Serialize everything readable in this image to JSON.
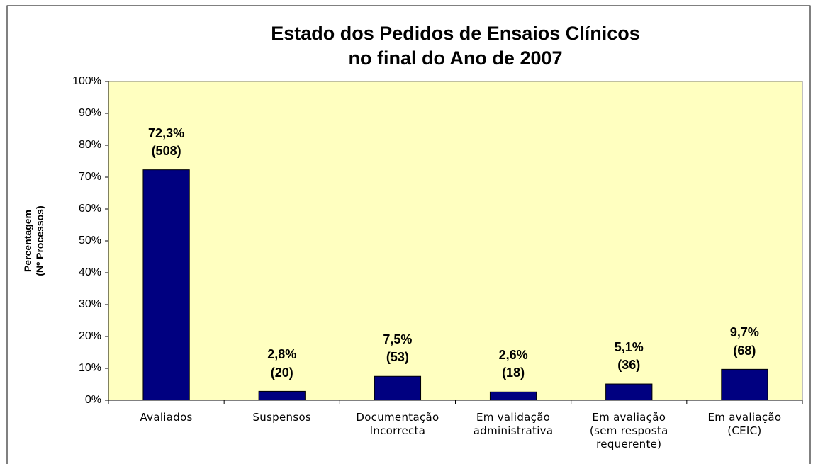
{
  "chart_data": {
    "type": "bar",
    "title": "Estado dos Pedidos de Ensaios Clínicos\nno final do Ano de 2007",
    "y_label": "Percentagem\n(Nº Processos)",
    "categories": [
      "Avaliados",
      "Suspensos",
      "Documentação\nIncorrecta",
      "Em validação\nadministrativa",
      "Em avaliação\n(sem resposta\nrequerente)",
      "Em avaliação\n(CEIC)"
    ],
    "values": [
      72.3,
      2.8,
      7.5,
      2.6,
      5.1,
      9.7
    ],
    "value_labels": [
      "72,3%\n(508)",
      "2,8%\n(20)",
      "7,5%\n(53)",
      "2,6%\n(18)",
      "5,1%\n(36)",
      "9,7%\n(68)"
    ],
    "color": "#000080",
    "ylim": [
      0,
      100
    ],
    "yticks": [
      {
        "value": 0,
        "label": "0%"
      },
      {
        "value": 10,
        "label": "10%"
      },
      {
        "value": 20,
        "label": "20%"
      },
      {
        "value": 30,
        "label": "30%"
      },
      {
        "value": 40,
        "label": "40%"
      },
      {
        "value": 50,
        "label": "50%"
      },
      {
        "value": 60,
        "label": "60%"
      },
      {
        "value": 70,
        "label": "70%"
      },
      {
        "value": 80,
        "label": "80%"
      },
      {
        "value": 90,
        "label": "90%"
      },
      {
        "value": 100,
        "label": "100%"
      }
    ],
    "grid": false
  }
}
